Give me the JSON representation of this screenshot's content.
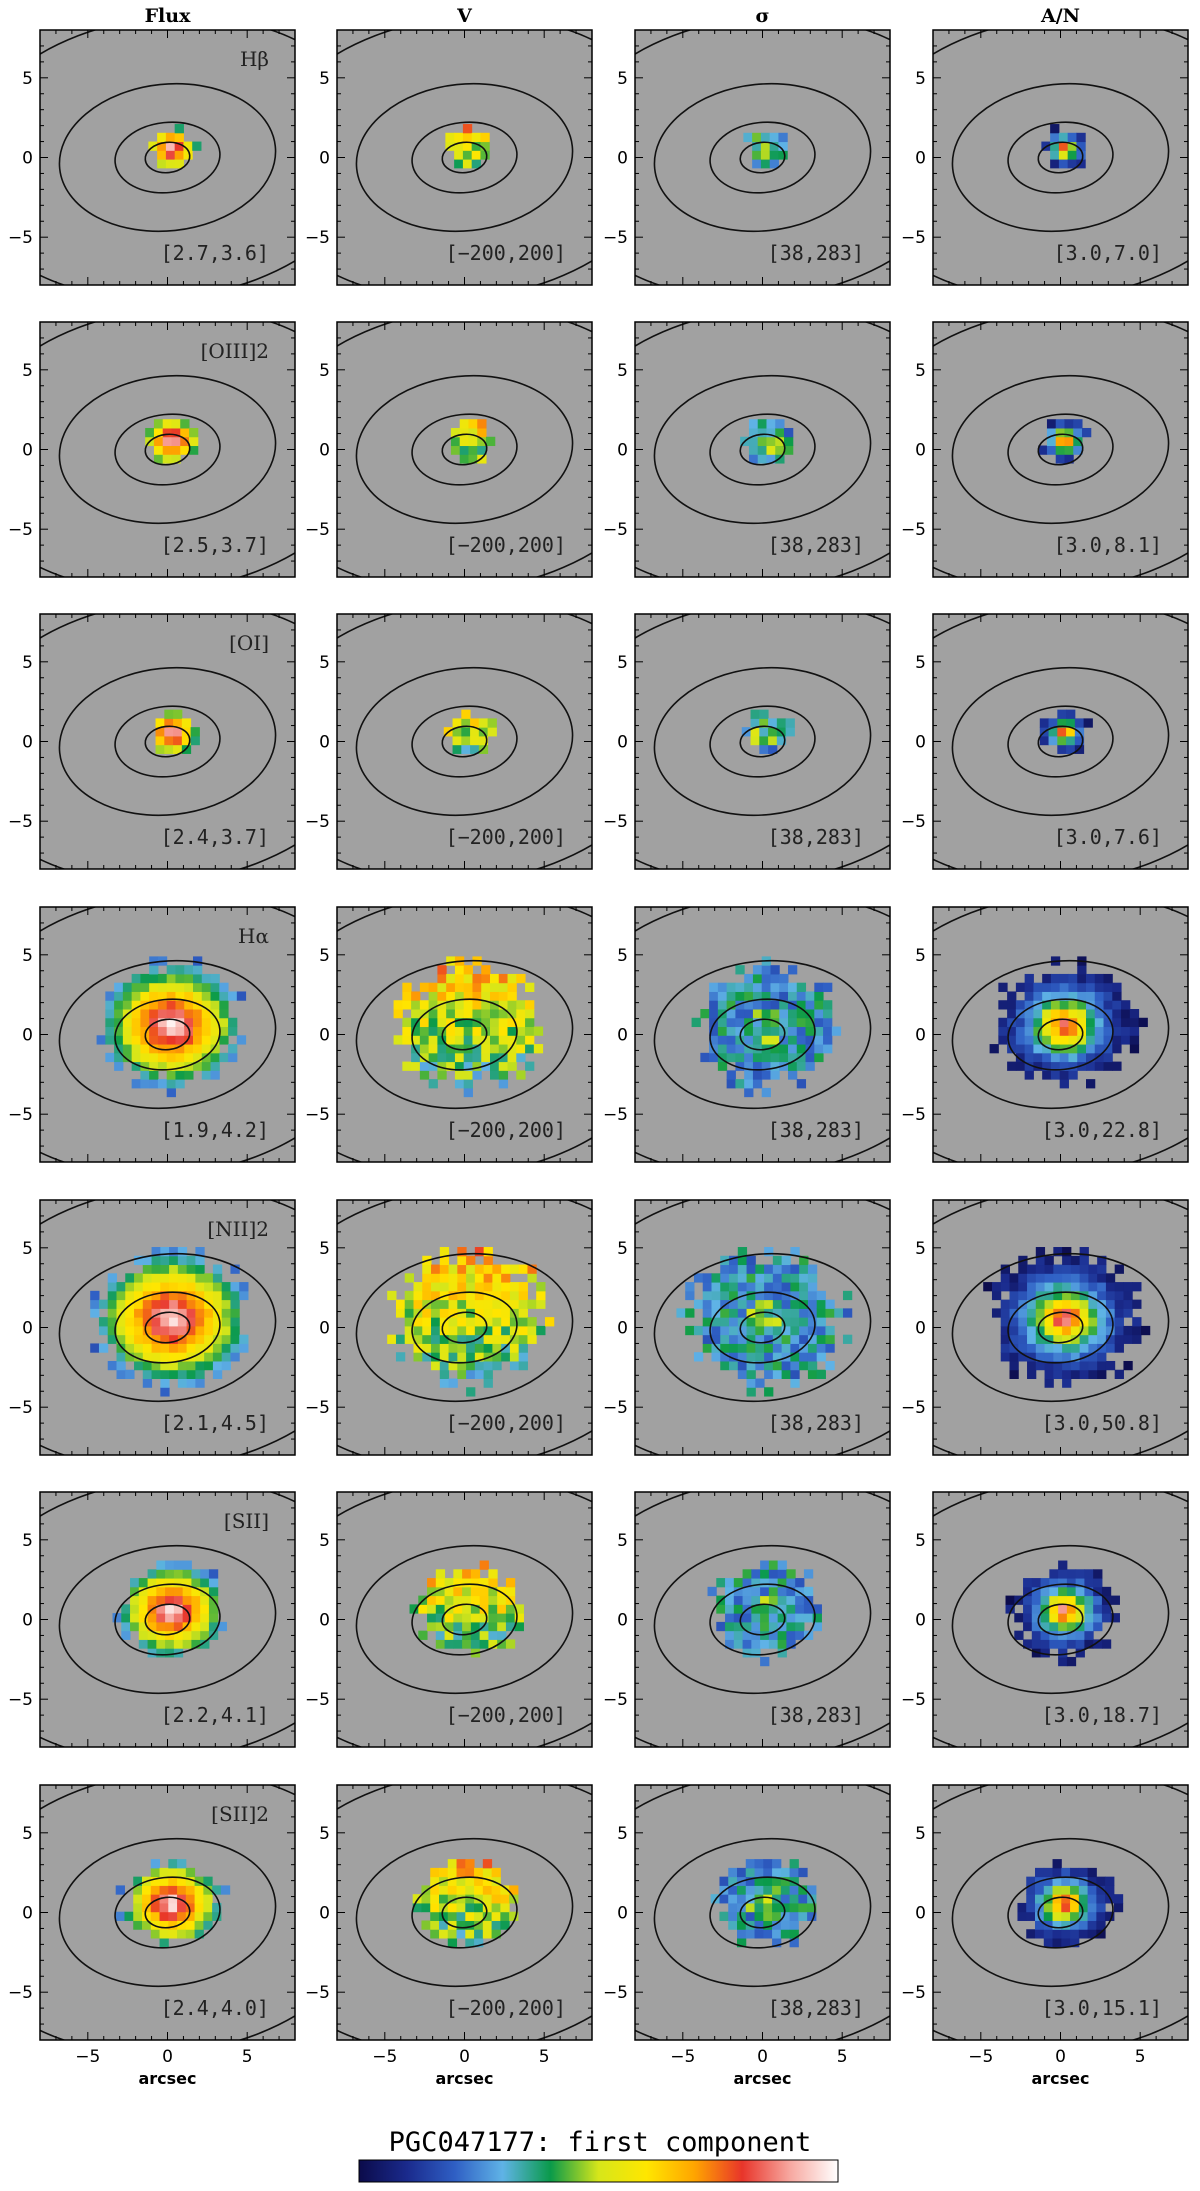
{
  "chart_data": {
    "type": "heatmap",
    "title": "PGC047177: first component",
    "xlabel": "arcsec",
    "xlim": [
      -8,
      8
    ],
    "ylim": [
      -8,
      8
    ],
    "xticks": [
      -5,
      0,
      5
    ],
    "yticks": [
      5,
      0,
      -5
    ],
    "grid": false,
    "columns": [
      "Flux",
      "V",
      "σ",
      "A/N"
    ],
    "rows": [
      {
        "line": "Hβ",
        "ranges": [
          "[2.7,3.6]",
          "[−200,200]",
          "[38,283]",
          "[3.0,7.0]"
        ],
        "extent": 1.3
      },
      {
        "line": "[OIII]2",
        "ranges": [
          "[2.5,3.7]",
          "[−200,200]",
          "[38,283]",
          "[3.0,8.1]"
        ],
        "extent": 1.5
      },
      {
        "line": "[OI]",
        "ranges": [
          "[2.4,3.7]",
          "[−200,200]",
          "[38,283]",
          "[3.0,7.6]"
        ],
        "extent": 1.4
      },
      {
        "line": "Hα",
        "ranges": [
          "[1.9,4.2]",
          "[−200,200]",
          "[38,283]",
          "[3.0,22.8]"
        ],
        "extent": 4.0
      },
      {
        "line": "[NII]2",
        "ranges": [
          "[2.1,4.5]",
          "[−200,200]",
          "[38,283]",
          "[3.0,50.8]"
        ],
        "extent": 4.4
      },
      {
        "line": "[SII]",
        "ranges": [
          "[2.2,4.1]",
          "[−200,200]",
          "[38,283]",
          "[3.0,18.7]"
        ],
        "extent": 3.0
      },
      {
        "line": "[SII]2",
        "ranges": [
          "[2.4,4.0]",
          "[−200,200]",
          "[38,283]",
          "[3.0,15.1]"
        ],
        "extent": 2.8
      }
    ],
    "colorbar": [
      "#0b0b4a",
      "#1a2a8c",
      "#2f5fc4",
      "#5fb3e6",
      "#0a9a4a",
      "#d6e61a",
      "#ffe600",
      "#ffa500",
      "#e8352a",
      "#f7a8a0",
      "#ffffff"
    ],
    "colors": {
      "background": "#a1a1a1",
      "contour": "#111111"
    }
  }
}
